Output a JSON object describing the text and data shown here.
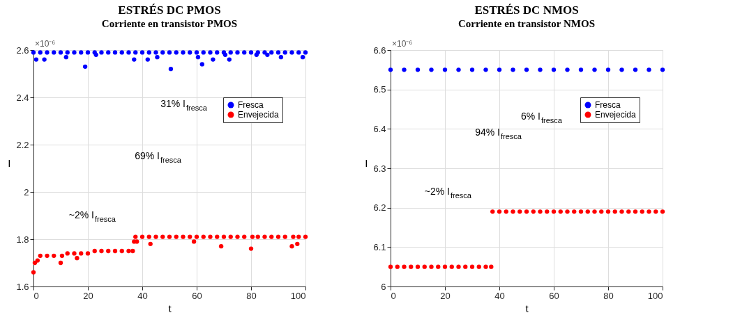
{
  "chart_data": [
    {
      "type": "scatter",
      "title": "ESTRÉS DC PMOS",
      "subtitle": "Corriente en transistor PMOS",
      "xlabel": "t",
      "ylabel": "I",
      "xlim": [
        0,
        100
      ],
      "xticks": [
        0,
        20,
        40,
        60,
        80,
        100
      ],
      "ylim": [
        1.6,
        2.6
      ],
      "yticks": [
        1.6,
        1.8,
        2,
        2.2,
        2.4,
        2.6
      ],
      "grid": true,
      "legend": "top right",
      "marker": "circle",
      "series": [
        {
          "name": "Fresca",
          "color": "#0000ff",
          "x": [
            0,
            1,
            2.5,
            4,
            5,
            7.5,
            10,
            12,
            12.5,
            15,
            17.5,
            19,
            20,
            22.5,
            23,
            25,
            27.5,
            30,
            32.5,
            35,
            37,
            37.5,
            40,
            42,
            42.5,
            45,
            45.5,
            47.5,
            50,
            50.5,
            52.5,
            55,
            57.5,
            60,
            60.5,
            62,
            62.5,
            65,
            66,
            67.5,
            70,
            70.5,
            72,
            72.5,
            75,
            77.5,
            80,
            82,
            82.5,
            85,
            86,
            87.5,
            90,
            91,
            92.5,
            95,
            97.5,
            99,
            100
          ],
          "values": [
            2.59,
            2.56,
            2.59,
            2.56,
            2.59,
            2.59,
            2.59,
            2.57,
            2.59,
            2.59,
            2.59,
            2.53,
            2.59,
            2.59,
            2.58,
            2.59,
            2.59,
            2.59,
            2.59,
            2.59,
            2.56,
            2.59,
            2.59,
            2.56,
            2.59,
            2.59,
            2.57,
            2.59,
            2.59,
            2.52,
            2.59,
            2.59,
            2.59,
            2.59,
            2.57,
            2.54,
            2.59,
            2.59,
            2.56,
            2.59,
            2.59,
            2.58,
            2.56,
            2.59,
            2.59,
            2.59,
            2.59,
            2.58,
            2.59,
            2.59,
            2.58,
            2.59,
            2.59,
            2.57,
            2.59,
            2.59,
            2.59,
            2.57,
            2.59
          ]
        },
        {
          "name": "Envejecida",
          "color": "#ff0000",
          "x": [
            0,
            0.5,
            1.5,
            2.5,
            5,
            7.5,
            10,
            10.5,
            12.5,
            15,
            16,
            17.5,
            20,
            22.5,
            25,
            27.5,
            30,
            32.5,
            35,
            36.5,
            37,
            37.5,
            38,
            40,
            42.5,
            43,
            45,
            47.5,
            50,
            52.5,
            55,
            57.5,
            59,
            60,
            62.5,
            65,
            67.5,
            69,
            70,
            72.5,
            75,
            77.5,
            80,
            80.5,
            82.5,
            85,
            87.5,
            90,
            92.5,
            95,
            95.5,
            97,
            97.5,
            100
          ],
          "values": [
            1.66,
            1.7,
            1.71,
            1.73,
            1.73,
            1.73,
            1.7,
            1.73,
            1.74,
            1.74,
            1.72,
            1.74,
            1.74,
            1.75,
            1.75,
            1.75,
            1.75,
            1.75,
            1.75,
            1.75,
            1.79,
            1.81,
            1.79,
            1.81,
            1.81,
            1.78,
            1.81,
            1.81,
            1.81,
            1.81,
            1.81,
            1.81,
            1.79,
            1.81,
            1.81,
            1.81,
            1.81,
            1.77,
            1.81,
            1.81,
            1.81,
            1.81,
            1.76,
            1.81,
            1.81,
            1.81,
            1.81,
            1.81,
            1.81,
            1.77,
            1.81,
            1.78,
            1.81,
            1.81
          ]
        }
      ],
      "annotations": [
        "×10⁻⁶",
        "31% I$_{fresca}$",
        "69% I$_{fresca}$",
        "~2% I$_{fresca}$"
      ]
    },
    {
      "type": "scatter",
      "title": "ESTRÉS DC NMOS",
      "subtitle": "Corriente en transistor NMOS",
      "xlabel": "t",
      "ylabel": "I",
      "xlim": [
        0,
        100
      ],
      "xticks": [
        0,
        20,
        40,
        60,
        80,
        100
      ],
      "ylim": [
        6,
        6.6
      ],
      "yticks": [
        6,
        6.1,
        6.2,
        6.3,
        6.4,
        6.5,
        6.6
      ],
      "grid": true,
      "legend": "top right",
      "marker": "circle",
      "series": [
        {
          "name": "Fresca",
          "color": "#0000ff",
          "x": [
            0,
            5,
            10,
            15,
            20,
            25,
            30,
            35,
            40,
            45,
            50,
            55,
            60,
            65,
            70,
            75,
            80,
            85,
            90,
            95,
            100
          ],
          "values": [
            6.55,
            6.55,
            6.55,
            6.55,
            6.55,
            6.55,
            6.55,
            6.55,
            6.55,
            6.55,
            6.55,
            6.55,
            6.55,
            6.55,
            6.55,
            6.55,
            6.55,
            6.55,
            6.55,
            6.55,
            6.55
          ]
        },
        {
          "name": "Envejecida",
          "color": "#ff0000",
          "x": [
            0,
            2.5,
            5,
            7.5,
            10,
            12.5,
            15,
            17.5,
            20,
            22.5,
            25,
            27.5,
            30,
            32.5,
            35,
            37,
            37.5,
            40,
            42.5,
            45,
            47.5,
            50,
            52.5,
            55,
            57.5,
            60,
            62.5,
            65,
            67.5,
            70,
            72.5,
            75,
            77.5,
            80,
            82.5,
            85,
            87.5,
            90,
            92.5,
            95,
            97.5,
            100
          ],
          "values": [
            6.05,
            6.05,
            6.05,
            6.05,
            6.05,
            6.05,
            6.05,
            6.05,
            6.05,
            6.05,
            6.05,
            6.05,
            6.05,
            6.05,
            6.05,
            6.05,
            6.19,
            6.19,
            6.19,
            6.19,
            6.19,
            6.19,
            6.19,
            6.19,
            6.19,
            6.19,
            6.19,
            6.19,
            6.19,
            6.19,
            6.19,
            6.19,
            6.19,
            6.19,
            6.19,
            6.19,
            6.19,
            6.19,
            6.19,
            6.19,
            6.19,
            6.19
          ]
        }
      ],
      "annotations": [
        "×10⁻⁶",
        "6% I$_{fresca}$",
        "94% I$_{fresca}$",
        "~2% I$_{fresca}$"
      ]
    }
  ]
}
